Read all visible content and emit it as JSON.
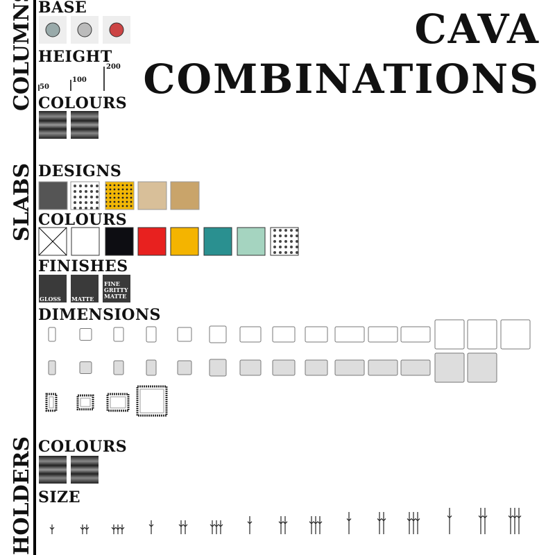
{
  "title": {
    "line1": "CAVA",
    "line2": "COMBINATIONS"
  },
  "sidebar": {
    "columns": "COLUMNS",
    "slabs": "SLABS",
    "holders": "HOLDERS"
  },
  "columns": {
    "base": "BASE",
    "height": {
      "label": "HEIGHT",
      "marks": [
        50,
        100,
        200
      ]
    },
    "colours": "COLOURS"
  },
  "slabs": {
    "designs": "DESIGNS",
    "colours": "COLOURS",
    "finishes": {
      "label": "FINISHES",
      "items": [
        "GLOSS",
        "MATTE",
        "FINE GRITTY MATTE"
      ]
    },
    "dimensions": "DIMENSIONS"
  },
  "holders": {
    "colours": "COLOURS",
    "size": "SIZE"
  }
}
